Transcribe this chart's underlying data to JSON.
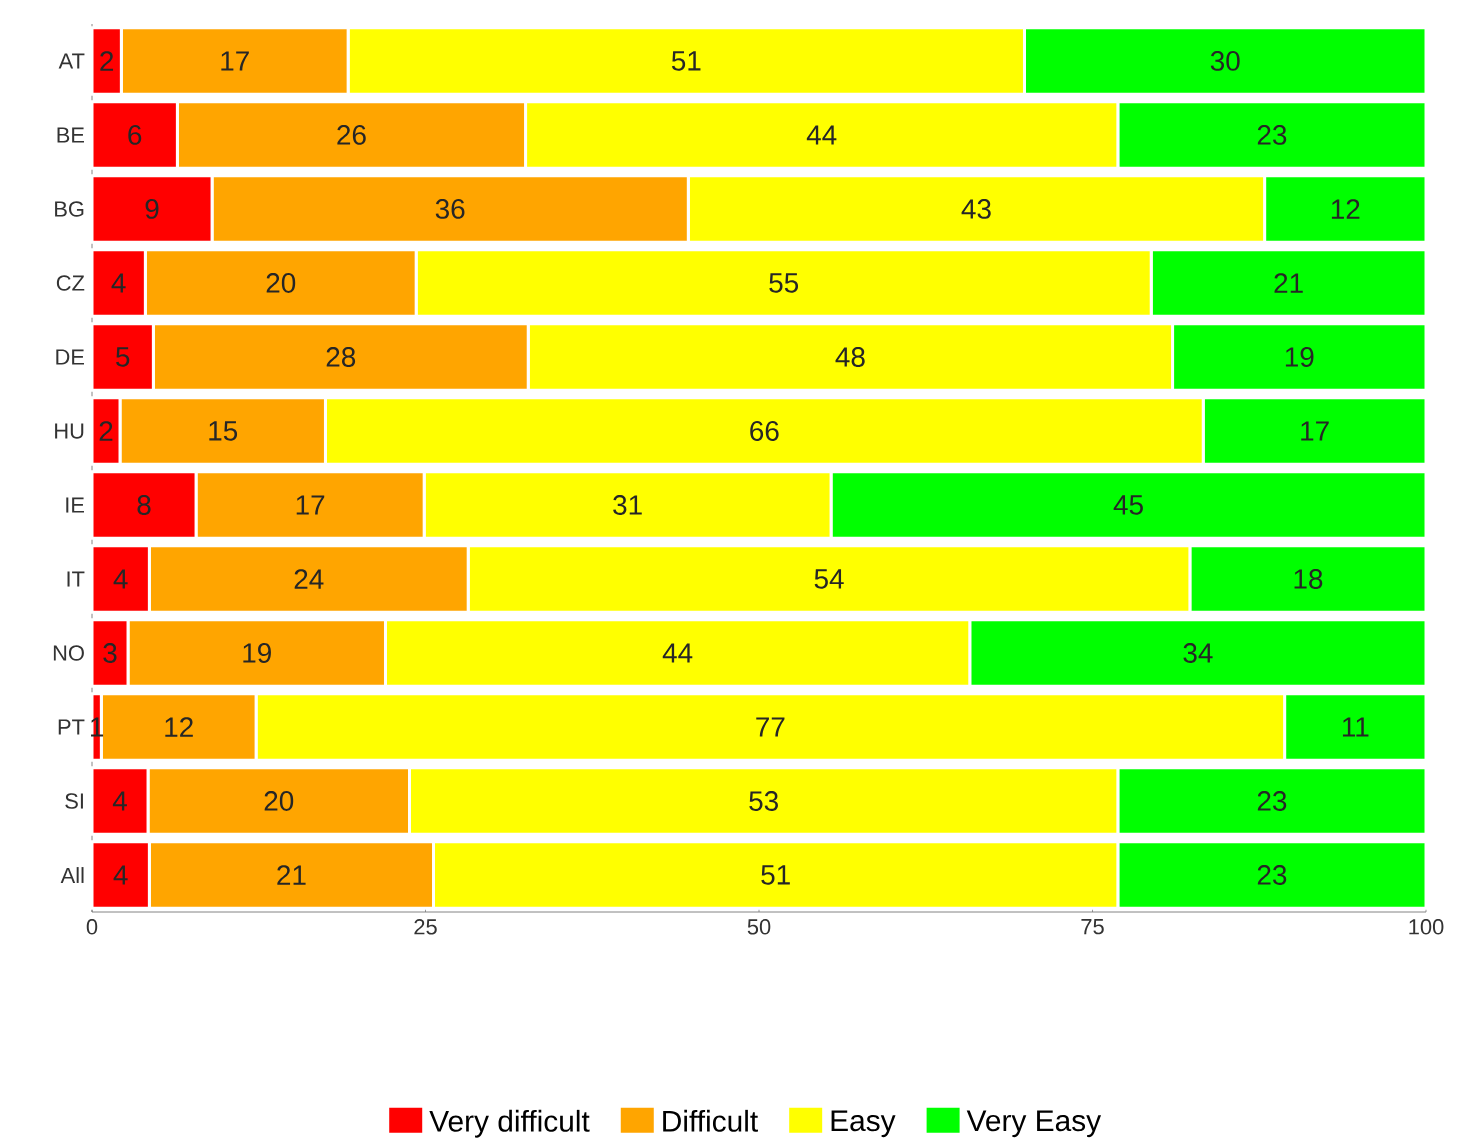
{
  "chart_data": {
    "type": "bar",
    "orientation": "horizontal",
    "stacked": true,
    "legend": "bottom",
    "categories": [
      "AT",
      "BE",
      "BG",
      "CZ",
      "DE",
      "HU",
      "IE",
      "IT",
      "NO",
      "PT",
      "SI",
      "All"
    ],
    "xlim": [
      0,
      100
    ],
    "xticks": [
      0,
      25,
      50,
      75,
      100
    ],
    "series": [
      {
        "name": "Very difficult",
        "color": "#ff0000",
        "values": [
          2.2,
          6.4,
          9.0,
          4.0,
          4.6,
          2.1,
          7.8,
          4.3,
          2.7,
          0.7,
          4.2,
          4.3
        ],
        "value_labels": [
          "2",
          "6",
          "9",
          "4",
          "5",
          "2",
          "8",
          "4",
          "3",
          "1",
          "4",
          "4"
        ]
      },
      {
        "name": "Difficult",
        "color": "#ffa500",
        "values": [
          17.0,
          26.1,
          35.7,
          20.3,
          28.1,
          15.4,
          17.1,
          23.9,
          19.3,
          11.6,
          19.6,
          21.3
        ],
        "value_labels": [
          "17",
          "26",
          "36",
          "20",
          "28",
          "15",
          "17",
          "24",
          "19",
          "12",
          "20",
          "21"
        ]
      },
      {
        "name": "Easy",
        "color": "#ffff00",
        "values": [
          50.7,
          44.4,
          43.2,
          55.1,
          48.3,
          65.8,
          30.5,
          54.1,
          43.8,
          77.1,
          53.1,
          51.3
        ],
        "value_labels": [
          "51",
          "44",
          "43",
          "55",
          "48",
          "66",
          "31",
          "54",
          "44",
          "77",
          "53",
          "51"
        ]
      },
      {
        "name": "Very Easy",
        "color": "#00ff00",
        "values": [
          30.1,
          23.1,
          12.1,
          20.6,
          19.0,
          16.7,
          44.6,
          17.7,
          34.2,
          10.6,
          23.1,
          23.1
        ],
        "value_labels": [
          "30",
          "23",
          "12",
          "21",
          "19",
          "17",
          "45",
          "18",
          "34",
          "11",
          "23",
          "23"
        ]
      }
    ]
  }
}
